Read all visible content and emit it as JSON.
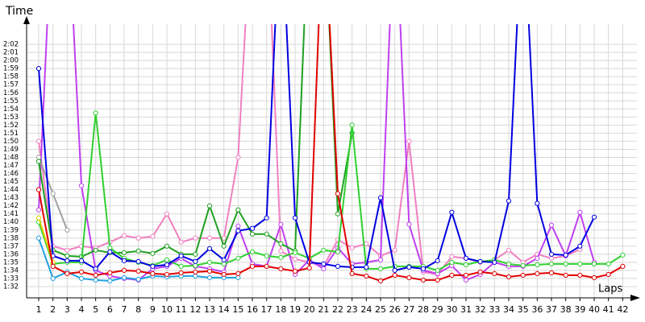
{
  "chart_data": {
    "type": "line",
    "y_label": "Time",
    "x_label": "Laps",
    "xlim": [
      0.15,
      43
    ],
    "ylim": [
      90.6,
      124.5
    ],
    "grid": true,
    "x": [
      1,
      2,
      3,
      4,
      5,
      6,
      7,
      8,
      9,
      10,
      11,
      12,
      13,
      14,
      15,
      16,
      17,
      18,
      19,
      20,
      21,
      22,
      23,
      24,
      25,
      26,
      27,
      28,
      29,
      30,
      31,
      32,
      33,
      34,
      35,
      36,
      37,
      38,
      39,
      40,
      41,
      42
    ],
    "xticks": [
      1,
      2,
      3,
      4,
      5,
      6,
      7,
      8,
      9,
      10,
      11,
      12,
      13,
      14,
      15,
      16,
      17,
      18,
      19,
      20,
      21,
      22,
      23,
      24,
      25,
      26,
      27,
      28,
      29,
      30,
      31,
      32,
      33,
      34,
      35,
      36,
      37,
      38,
      39,
      40,
      41,
      42
    ],
    "yticks": [
      {
        "value": 92,
        "label": "1:32"
      },
      {
        "value": 93,
        "label": "1:33"
      },
      {
        "value": 94,
        "label": "1:34"
      },
      {
        "value": 95,
        "label": "1:35"
      },
      {
        "value": 96,
        "label": "1:36"
      },
      {
        "value": 97,
        "label": "1:37"
      },
      {
        "value": 98,
        "label": "1:38"
      },
      {
        "value": 99,
        "label": "1:39"
      },
      {
        "value": 100,
        "label": "1:40"
      },
      {
        "value": 101,
        "label": "1:41"
      },
      {
        "value": 102,
        "label": "1:42"
      },
      {
        "value": 103,
        "label": "1:43"
      },
      {
        "value": 104,
        "label": "1:44"
      },
      {
        "value": 105,
        "label": "1:45"
      },
      {
        "value": 106,
        "label": "1:46"
      },
      {
        "value": 107,
        "label": "1:47"
      },
      {
        "value": 108,
        "label": "1:48"
      },
      {
        "value": 109,
        "label": "1:49"
      },
      {
        "value": 110,
        "label": "1:50"
      },
      {
        "value": 111,
        "label": "1:51"
      },
      {
        "value": 112,
        "label": "1:52"
      },
      {
        "value": 113,
        "label": "1:53"
      },
      {
        "value": 114,
        "label": "1:54"
      },
      {
        "value": 115,
        "label": "1:55"
      },
      {
        "value": 116,
        "label": "1:56"
      },
      {
        "value": 117,
        "label": "1:57"
      },
      {
        "value": 118,
        "label": "1:58"
      },
      {
        "value": 119,
        "label": "1:59"
      },
      {
        "value": 120,
        "label": "2:00"
      },
      {
        "value": 121,
        "label": "2:01"
      },
      {
        "value": 122,
        "label": "2:02"
      }
    ],
    "series": [
      {
        "color": "#f080c0",
        "values": [
          110,
          97,
          96.5,
          97,
          96.8,
          97.5,
          98.3,
          98,
          98.2,
          101,
          97.5,
          98,
          98,
          98,
          108,
          140,
          140,
          96.4,
          95.4,
          95,
          94.5,
          97.8,
          96.8,
          97.3,
          95.8,
          96.5,
          110,
          93.8,
          93.5,
          95.7,
          95.5,
          95,
          95.3,
          96.5,
          95,
          96,
          95.5,
          95.8,
          96.6,
          null,
          null,
          null
        ]
      },
      {
        "color": "#c040f0",
        "values": [
          101.5,
          140,
          140,
          104.5,
          94,
          93.3,
          93,
          92.8,
          94.2,
          94.5,
          95.5,
          94.5,
          94.2,
          93.8,
          99.5,
          94.8,
          94.5,
          99.7,
          93.5,
          95.3,
          94.2,
          96.8,
          94.8,
          95,
          95.3,
          140,
          99.7,
          94,
          93.6,
          94.6,
          92.8,
          93.5,
          95,
          94.5,
          94.5,
          95.5,
          99.6,
          95.8,
          101.2,
          95,
          null,
          null
        ]
      },
      {
        "color": "#a0a0a0",
        "values": [
          108,
          103.5,
          99,
          null,
          null,
          null,
          null,
          null,
          null,
          null,
          null,
          null,
          null,
          null,
          null,
          null,
          null,
          null,
          null,
          null,
          null,
          null,
          null,
          null,
          null,
          null,
          null,
          null,
          null,
          null,
          null,
          null,
          null,
          null,
          null,
          null,
          null,
          null,
          null,
          null,
          null,
          null
        ]
      },
      {
        "color": "#20a020",
        "values": [
          107.5,
          96.5,
          95.8,
          95.7,
          96.5,
          96.2,
          96.2,
          96.4,
          96.1,
          97,
          96,
          96,
          102,
          97,
          101.5,
          98.5,
          98.5,
          97.3,
          96.4,
          140,
          140,
          101,
          111,
          null,
          null,
          null,
          null,
          null,
          null,
          null,
          null,
          null,
          null,
          null,
          null,
          null,
          null,
          null,
          null,
          null,
          null,
          null
        ]
      },
      {
        "color": "#30d030",
        "values": [
          100,
          94.8,
          95,
          95,
          113.5,
          96.8,
          95.5,
          95,
          94.6,
          95.3,
          94.5,
          94.6,
          95,
          94.8,
          95.5,
          96.3,
          95.8,
          95.6,
          96.2,
          95.5,
          96.5,
          96.3,
          112,
          94.2,
          94.2,
          94.5,
          94.5,
          94.5,
          94,
          95,
          94.7,
          95.1,
          95.3,
          94.8,
          94.6,
          94.7,
          94.8,
          94.8,
          94.8,
          94.8,
          94.8,
          95.9
        ]
      },
      {
        "color": "#e0d000",
        "values": [
          100.5,
          95,
          null,
          null,
          null,
          null,
          null,
          null,
          null,
          null,
          null,
          null,
          null,
          null,
          null,
          null,
          null,
          null,
          null,
          null,
          null,
          null,
          null,
          null,
          null,
          null,
          null,
          null,
          null,
          null,
          null,
          null,
          null,
          null,
          null,
          null,
          null,
          null,
          null,
          null,
          null,
          null
        ]
      },
      {
        "color": "#20a0e0",
        "values": [
          98,
          93,
          93.8,
          93,
          92.8,
          92.7,
          93.1,
          92.9,
          93.3,
          93.2,
          93.3,
          93.3,
          93.1,
          93.1,
          93.1,
          null,
          null,
          null,
          null,
          null,
          null,
          null,
          null,
          null,
          null,
          null,
          null,
          null,
          null,
          null,
          null,
          null,
          null,
          null,
          null,
          null,
          null,
          null,
          null,
          null,
          null,
          null
        ]
      },
      {
        "color": "#0000e0",
        "values": [
          119,
          95.8,
          95.2,
          95.2,
          94.2,
          96.3,
          95.2,
          95.1,
          94.5,
          94.7,
          95.8,
          95.1,
          96.7,
          95.3,
          98.9,
          99.2,
          100.5,
          140,
          100.5,
          95,
          94.8,
          94.5,
          94.4,
          94.4,
          103,
          94,
          94.4,
          94.2,
          95.2,
          101.2,
          95.5,
          95.1,
          95,
          102.6,
          140,
          102.3,
          96,
          95.9,
          97,
          100.6,
          null,
          null
        ]
      },
      {
        "color": "#e00000",
        "values": [
          104,
          94.5,
          93.6,
          93.8,
          93.4,
          93.7,
          94,
          93.9,
          93.6,
          93.5,
          93.7,
          93.8,
          93.9,
          93.5,
          93.6,
          94.5,
          94.5,
          94.2,
          93.9,
          94.3,
          140,
          103.5,
          93.6,
          93.3,
          92.7,
          93.4,
          93.1,
          92.8,
          92.8,
          93.4,
          93.4,
          93.8,
          93.6,
          93.2,
          93.4,
          93.6,
          93.7,
          93.4,
          93.4,
          93.1,
          93.5,
          94.5
        ]
      }
    ]
  }
}
